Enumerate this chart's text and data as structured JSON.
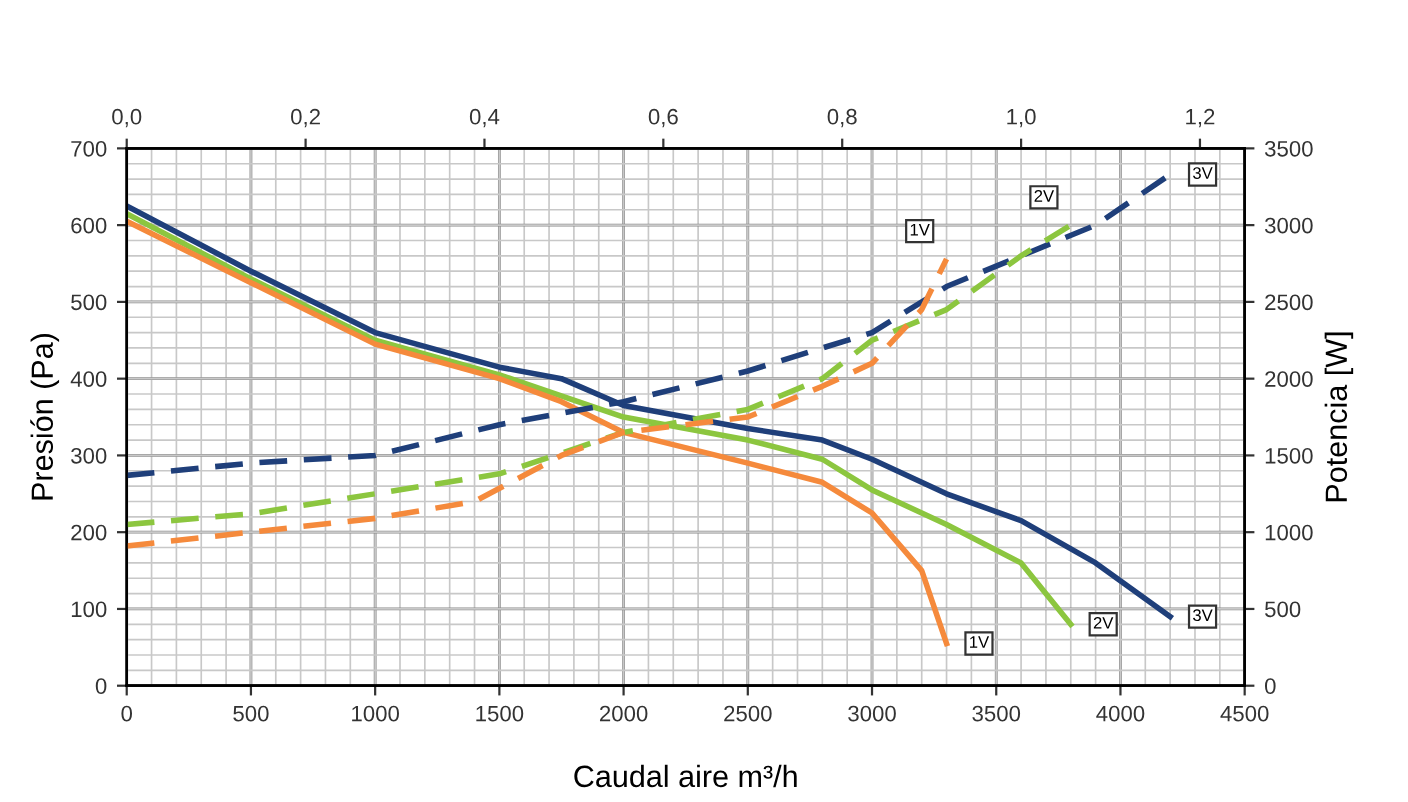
{
  "chart_data": {
    "type": "line",
    "xlabel": "Caudal aire m³/h",
    "ylabel": "Presión (Pa)",
    "y2label": "Potencia [W]",
    "xlim": [
      0,
      4500
    ],
    "xticks": [
      0,
      500,
      1000,
      1500,
      2000,
      2500,
      3000,
      3500,
      4000,
      4500
    ],
    "ylim": [
      0,
      700
    ],
    "yticks": [
      0,
      100,
      200,
      300,
      400,
      500,
      600,
      700
    ],
    "y2lim": [
      0,
      3500
    ],
    "y2ticks": [
      0,
      500,
      1000,
      1500,
      2000,
      2500,
      3000,
      3500
    ],
    "x2lim": [
      0,
      1.25
    ],
    "x2ticks": [
      {
        "value": 0,
        "label": "0,0"
      },
      {
        "value": 0.2,
        "label": "0,2"
      },
      {
        "value": 0.4,
        "label": "0,4"
      },
      {
        "value": 0.6,
        "label": "0,6"
      },
      {
        "value": 0.8,
        "label": "0,8"
      },
      {
        "value": 1.0,
        "label": "1,0"
      },
      {
        "value": 1.2,
        "label": "1,2"
      }
    ],
    "grid": true,
    "marker": "none",
    "series": [
      {
        "name": "3V",
        "color": "#1f3f7a",
        "line_style": "solid",
        "x": [
          0,
          500,
          1000,
          1500,
          1750,
          2000,
          2500,
          2800,
          3000,
          3300,
          3600,
          3900,
          4200
        ],
        "values": [
          625,
          540,
          460,
          415,
          400,
          365,
          335,
          320,
          295,
          250,
          215,
          160,
          90
        ]
      },
      {
        "name": "2V",
        "color": "#8cc63f",
        "line_style": "solid",
        "x": [
          0,
          500,
          1000,
          1500,
          2000,
          2500,
          2800,
          3000,
          3300,
          3600,
          3800
        ],
        "values": [
          615,
          530,
          450,
          405,
          350,
          320,
          295,
          255,
          210,
          160,
          80
        ]
      },
      {
        "name": "1V",
        "color": "#f58a3c",
        "line_style": "solid",
        "x": [
          0,
          500,
          1000,
          1500,
          1750,
          2000,
          2500,
          2800,
          3000,
          3200,
          3300
        ],
        "values": [
          605,
          525,
          445,
          400,
          370,
          330,
          290,
          265,
          225,
          150,
          55
        ]
      },
      {
        "name": "3V",
        "color": "#1f3f7a",
        "line_style": "dashed",
        "axis": "y2",
        "x": [
          0,
          500,
          1000,
          1500,
          2000,
          2500,
          3000,
          3300,
          3600,
          3900,
          4200
        ],
        "values": [
          1370,
          1450,
          1500,
          1700,
          1850,
          2050,
          2300,
          2600,
          2800,
          3000,
          3330
        ]
      },
      {
        "name": "2V",
        "color": "#8cc63f",
        "line_style": "dashed",
        "axis": "y2",
        "x": [
          0,
          500,
          1000,
          1500,
          2000,
          2500,
          2800,
          3000,
          3300,
          3600,
          3800
        ],
        "values": [
          1050,
          1120,
          1250,
          1380,
          1650,
          1800,
          2000,
          2250,
          2450,
          2800,
          3000
        ]
      },
      {
        "name": "1V",
        "color": "#f58a3c",
        "line_style": "dashed",
        "axis": "y2",
        "x": [
          0,
          500,
          1000,
          1400,
          1750,
          2000,
          2500,
          2800,
          3000,
          3200,
          3300
        ],
        "values": [
          910,
          1000,
          1090,
          1200,
          1500,
          1650,
          1750,
          1950,
          2100,
          2450,
          2780
        ]
      }
    ]
  }
}
